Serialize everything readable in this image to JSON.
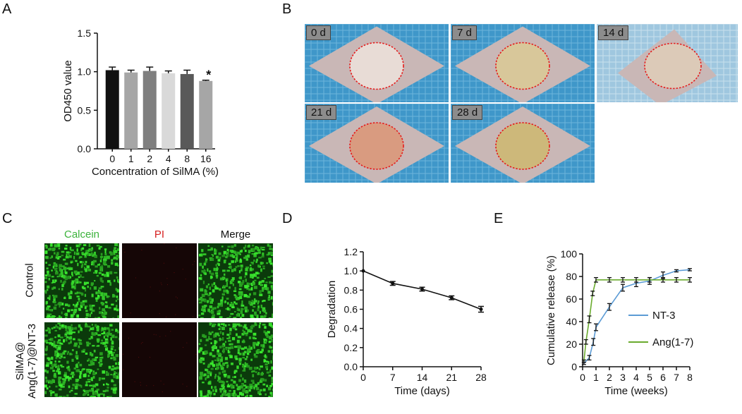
{
  "panels": {
    "A": "A",
    "B": "B",
    "C": "C",
    "D": "D",
    "E": "E"
  },
  "colors": {
    "green": "#3cb33c",
    "red": "#d62020",
    "line_nt3": "#5b9bd5",
    "line_ang": "#6aab2e",
    "bar_colors": [
      "#111111",
      "#a6a6a6",
      "#7f7f7f",
      "#d9d9d9",
      "#595959",
      "#a6a6a6"
    ]
  },
  "chart_data": [
    {
      "panel": "A",
      "type": "bar",
      "categories": [
        "0",
        "1",
        "2",
        "4",
        "8",
        "16"
      ],
      "values": [
        1.02,
        0.99,
        1.01,
        0.98,
        0.97,
        0.88
      ],
      "errors": [
        0.04,
        0.03,
        0.05,
        0.03,
        0.05,
        0.01
      ],
      "annotations": [
        "",
        "",
        "",
        "",
        "",
        "*"
      ],
      "xlabel": "Concentration of SilMA (%)",
      "ylabel": "OD450 value",
      "ylim": [
        0,
        1.5
      ],
      "yticks": [
        "0.0",
        "0.5",
        "1.0",
        "1.5"
      ]
    },
    {
      "panel": "D",
      "type": "line",
      "x": [
        0,
        7,
        14,
        21,
        28
      ],
      "values": [
        1.0,
        0.87,
        0.81,
        0.72,
        0.6
      ],
      "errors": [
        0.0,
        0.02,
        0.02,
        0.02,
        0.03
      ],
      "xlabel": "Time (days)",
      "ylabel": "Degradation",
      "xlim": [
        0,
        28
      ],
      "ylim": [
        0,
        1.2
      ],
      "xticks": [
        "0",
        "7",
        "14",
        "21",
        "28"
      ],
      "yticks": [
        "0.0",
        "0.2",
        "0.4",
        "0.6",
        "0.8",
        "1.0",
        "1.2"
      ]
    },
    {
      "panel": "E",
      "type": "line",
      "xlabel": "Time (weeks)",
      "ylabel": "Cumulative release (%)",
      "xlim": [
        0,
        8
      ],
      "ylim": [
        0,
        100
      ],
      "xticks": [
        "0",
        "1",
        "2",
        "3",
        "4",
        "5",
        "6",
        "7",
        "8"
      ],
      "yticks": [
        "0",
        "20",
        "40",
        "60",
        "80",
        "100"
      ],
      "legend": "right",
      "series": [
        {
          "name": "NT-3",
          "x": [
            0.1,
            0.5,
            0.8,
            1,
            2,
            3,
            4,
            5,
            6,
            7,
            8
          ],
          "values": [
            3,
            8,
            22,
            35,
            53,
            70,
            74,
            76,
            81,
            85,
            86
          ],
          "errors": [
            1,
            2,
            3,
            3,
            3,
            3,
            3,
            3,
            3,
            1,
            1
          ]
        },
        {
          "name": "Ang(1-7)",
          "x": [
            0.1,
            0.25,
            0.5,
            0.75,
            1,
            2,
            3,
            4,
            5,
            6,
            7,
            8
          ],
          "values": [
            5,
            22,
            42,
            65,
            77,
            77,
            77,
            77,
            77,
            77,
            77,
            77
          ],
          "errors": [
            1,
            2,
            3,
            2,
            2,
            2,
            2,
            2,
            2,
            2,
            2,
            2
          ]
        }
      ]
    }
  ],
  "photos": {
    "days": [
      "0 d",
      "7 d",
      "14 d",
      "21 d",
      "28 d"
    ]
  },
  "fluorescence": {
    "columns": [
      "Calcein",
      "PI",
      "Merge"
    ],
    "rows": [
      "Control",
      "SilMA@\nAng(1-7)@NT-3"
    ],
    "row_line1": "SilMA@",
    "row_line2": "Ang(1-7)@NT-3"
  }
}
